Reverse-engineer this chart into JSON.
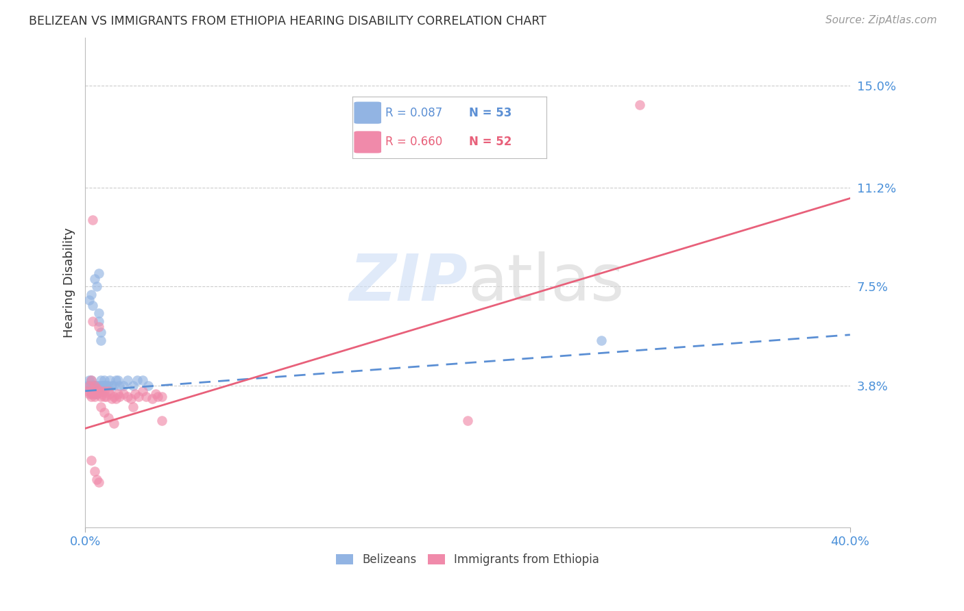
{
  "title": "BELIZEAN VS IMMIGRANTS FROM ETHIOPIA HEARING DISABILITY CORRELATION CHART",
  "source": "Source: ZipAtlas.com",
  "ylabel": "Hearing Disability",
  "ytick_labels": [
    "15.0%",
    "11.2%",
    "7.5%",
    "3.8%"
  ],
  "ytick_values": [
    0.15,
    0.112,
    0.075,
    0.038
  ],
  "xlim": [
    0.0,
    0.4
  ],
  "ylim": [
    -0.015,
    0.168
  ],
  "legend_blue_r": "R = 0.087",
  "legend_blue_n": "N = 53",
  "legend_pink_r": "R = 0.660",
  "legend_pink_n": "N = 52",
  "blue_color": "#92b4e3",
  "pink_color": "#f08aaa",
  "blue_line_color": "#5b8fd4",
  "pink_line_color": "#e8607a",
  "title_color": "#333333",
  "axis_label_color": "#4a90d9",
  "blue_scatter_x": [
    0.001,
    0.002,
    0.002,
    0.003,
    0.003,
    0.003,
    0.003,
    0.004,
    0.004,
    0.004,
    0.004,
    0.005,
    0.005,
    0.005,
    0.005,
    0.005,
    0.006,
    0.006,
    0.006,
    0.007,
    0.007,
    0.007,
    0.007,
    0.008,
    0.008,
    0.008,
    0.009,
    0.009,
    0.01,
    0.01,
    0.011,
    0.012,
    0.013,
    0.014,
    0.015,
    0.016,
    0.017,
    0.018,
    0.02,
    0.022,
    0.025,
    0.027,
    0.03,
    0.033,
    0.002,
    0.003,
    0.004,
    0.005,
    0.006,
    0.007,
    0.008,
    0.01,
    0.27
  ],
  "blue_scatter_y": [
    0.038,
    0.04,
    0.038,
    0.037,
    0.035,
    0.038,
    0.04,
    0.036,
    0.038,
    0.036,
    0.038,
    0.035,
    0.037,
    0.036,
    0.038,
    0.038,
    0.036,
    0.038,
    0.035,
    0.036,
    0.038,
    0.062,
    0.065,
    0.038,
    0.04,
    0.058,
    0.036,
    0.038,
    0.038,
    0.04,
    0.038,
    0.038,
    0.04,
    0.038,
    0.038,
    0.04,
    0.04,
    0.038,
    0.038,
    0.04,
    0.038,
    0.04,
    0.04,
    0.038,
    0.07,
    0.072,
    0.068,
    0.078,
    0.075,
    0.08,
    0.055,
    0.038,
    0.055
  ],
  "pink_scatter_x": [
    0.001,
    0.002,
    0.002,
    0.003,
    0.003,
    0.003,
    0.004,
    0.004,
    0.005,
    0.005,
    0.005,
    0.006,
    0.006,
    0.007,
    0.007,
    0.008,
    0.008,
    0.009,
    0.01,
    0.01,
    0.011,
    0.012,
    0.013,
    0.014,
    0.015,
    0.016,
    0.017,
    0.018,
    0.02,
    0.022,
    0.024,
    0.026,
    0.028,
    0.03,
    0.032,
    0.035,
    0.037,
    0.038,
    0.04,
    0.04,
    0.003,
    0.005,
    0.007,
    0.2,
    0.29,
    0.008,
    0.01,
    0.012,
    0.015,
    0.025,
    0.004,
    0.006
  ],
  "pink_scatter_y": [
    0.036,
    0.035,
    0.038,
    0.034,
    0.036,
    0.04,
    0.035,
    0.062,
    0.034,
    0.036,
    0.038,
    0.035,
    0.037,
    0.036,
    0.06,
    0.034,
    0.036,
    0.035,
    0.034,
    0.036,
    0.034,
    0.036,
    0.035,
    0.033,
    0.034,
    0.033,
    0.035,
    0.034,
    0.035,
    0.034,
    0.033,
    0.035,
    0.034,
    0.036,
    0.034,
    0.033,
    0.035,
    0.034,
    0.034,
    0.025,
    0.01,
    0.006,
    0.002,
    0.025,
    0.143,
    0.03,
    0.028,
    0.026,
    0.024,
    0.03,
    0.1,
    0.003
  ],
  "blue_line_x": [
    0.0,
    0.4
  ],
  "blue_line_y_start": 0.036,
  "blue_line_y_end": 0.057,
  "pink_line_x": [
    0.0,
    0.4
  ],
  "pink_line_y_start": 0.022,
  "pink_line_y_end": 0.108
}
